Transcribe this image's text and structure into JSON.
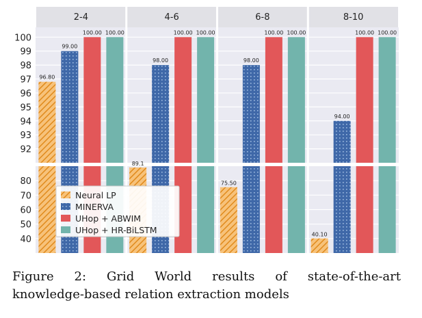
{
  "chart_data": {
    "type": "bar",
    "panels": [
      "2-4",
      "4-6",
      "6-8",
      "8-10"
    ],
    "series": [
      {
        "name": "Neural LP",
        "values": [
          96.8,
          89.1,
          75.5,
          40.1
        ],
        "labels": [
          "96.80",
          "89.1",
          "75.50",
          "40.10"
        ],
        "color": "#f2a33a",
        "pattern": "hatch"
      },
      {
        "name": "MINERVA",
        "values": [
          99.0,
          98.0,
          98.0,
          94.0
        ],
        "labels": [
          "99.00",
          "98.00",
          "98.00",
          "94.00"
        ],
        "color": "#4a74b0",
        "pattern": "dots"
      },
      {
        "name": "UHop + ABWIM",
        "values": [
          100.0,
          100.0,
          100.0,
          100.0
        ],
        "labels": [
          "100.00",
          "100.00",
          "100.00",
          "100.00"
        ],
        "color": "#e25759",
        "pattern": "solid"
      },
      {
        "name": "UHop + HR-BiLSTM",
        "values": [
          100.0,
          100.0,
          100.0,
          100.0
        ],
        "labels": [
          "100.00",
          "100.00",
          "100.00",
          "100.00"
        ],
        "color": "#72b4ac",
        "pattern": "solid"
      }
    ],
    "y_upper_ticks": [
      "100",
      "99",
      "98",
      "97",
      "96",
      "95",
      "94",
      "93",
      "92"
    ],
    "y_lower_ticks": [
      "80",
      "70",
      "60",
      "50",
      "40"
    ],
    "ylim_upper": [
      91,
      100.7
    ],
    "ylim_lower": [
      30,
      90
    ],
    "broken_axis": true,
    "grid": true,
    "legend_position": "bottom-left",
    "xlabel": "",
    "ylabel": ""
  },
  "caption": {
    "line1": "Figure 2:  Grid World results of state-of-the-art",
    "line2": "knowledge-based relation extraction models"
  }
}
